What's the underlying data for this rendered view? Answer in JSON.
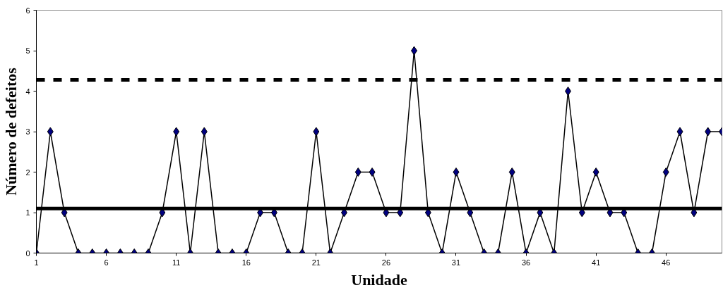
{
  "chart_data": {
    "type": "line",
    "xlabel": "Unidade",
    "ylabel": "Número de defeitos",
    "x": [
      1,
      2,
      3,
      4,
      5,
      6,
      7,
      8,
      9,
      10,
      11,
      12,
      13,
      14,
      15,
      16,
      17,
      18,
      19,
      20,
      21,
      22,
      23,
      24,
      25,
      26,
      27,
      28,
      29,
      30,
      31,
      32,
      33,
      34,
      35,
      36,
      37,
      38,
      39,
      40,
      41,
      42,
      43,
      44,
      45,
      46,
      47,
      48,
      49,
      50
    ],
    "series": [
      {
        "color": "#000080",
        "values": [
          0,
          3,
          1,
          0,
          0,
          0,
          0,
          0,
          0,
          1,
          3,
          0,
          3,
          0,
          0,
          0,
          1,
          1,
          0,
          0,
          3,
          0,
          1,
          2,
          2,
          1,
          1,
          5,
          1,
          0,
          2,
          1,
          0,
          0,
          2,
          0,
          1,
          0,
          4,
          1,
          2,
          1,
          1,
          0,
          0,
          2,
          3,
          1,
          3,
          3
        ]
      }
    ],
    "xlim": [
      1,
      50
    ],
    "xticks": [
      1,
      6,
      11,
      16,
      21,
      26,
      31,
      36,
      41,
      46
    ],
    "ylim": [
      0,
      6
    ],
    "yticks": [
      0,
      1,
      2,
      3,
      4,
      5,
      6
    ],
    "ref_lines": [
      {
        "axis": "y",
        "value": 1.1,
        "label": null,
        "color": "#000000",
        "line_style": "solid"
      },
      {
        "axis": "y",
        "value": 4.28,
        "label": null,
        "color": "#000000",
        "line_style": "dashed"
      }
    ],
    "marker": "diamond",
    "grid": false
  }
}
